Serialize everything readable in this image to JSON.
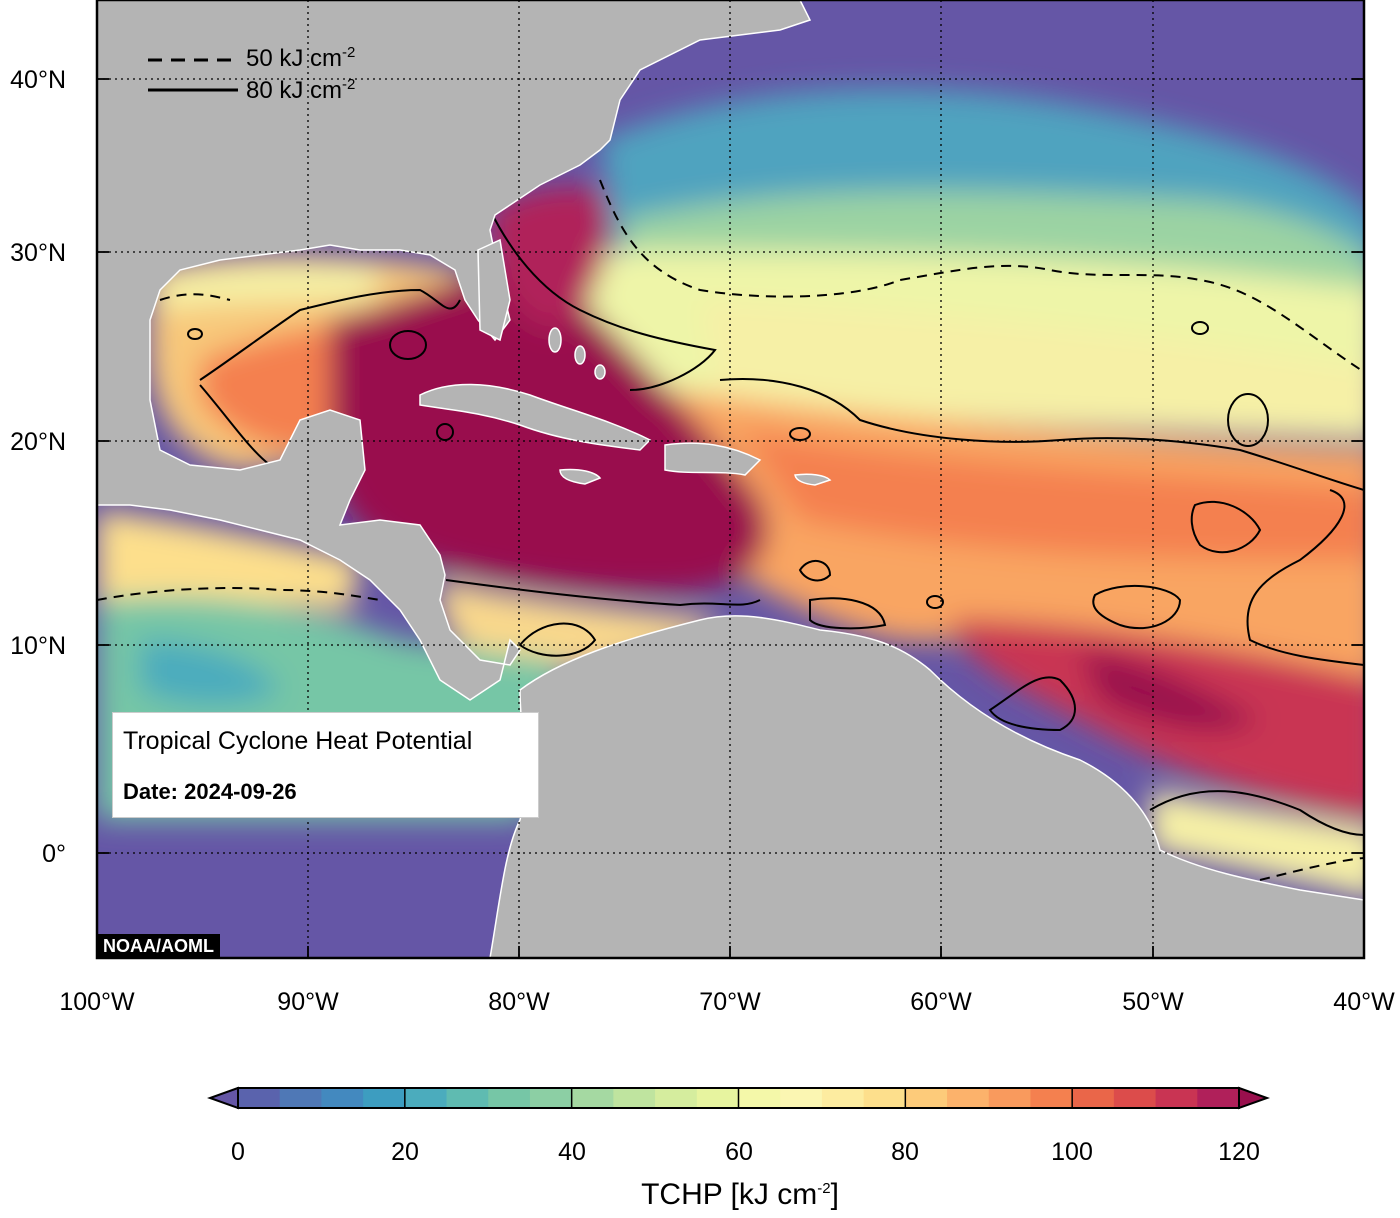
{
  "map": {
    "lat_labels": [
      "40°N",
      "30°N",
      "20°N",
      "10°N",
      "0°"
    ],
    "lon_labels": [
      "100°W",
      "90°W",
      "80°W",
      "70°W",
      "60°W",
      "50°W",
      "40°W"
    ],
    "extent": {
      "lon": [
        -100,
        -40
      ],
      "lat": [
        -6,
        44
      ]
    },
    "land_color": "#b4b4b4",
    "coast_color": "#ffffff"
  },
  "legend": {
    "dashed_value": "50 kJ cm",
    "solid_value": "80 kJ cm",
    "exponent": "-2"
  },
  "info_box": {
    "title": "Tropical Cyclone Heat Potential",
    "date": "Date: 2024-09-26"
  },
  "credit": "NOAA/AOML",
  "colorbar": {
    "ticks": [
      "0",
      "20",
      "40",
      "60",
      "80",
      "100",
      "120"
    ],
    "title": "TCHP [kJ cm",
    "title_exp": "-2",
    "title_close": "]",
    "range": [
      0,
      120
    ],
    "colors": [
      "#6556a6",
      "#5a63ad",
      "#4f78b6",
      "#4389bf",
      "#3d9dc0",
      "#4bacbd",
      "#5fbbb1",
      "#76c6a6",
      "#8ccfa4",
      "#a5d9a2",
      "#bfe49f",
      "#d5ed9e",
      "#e7f49f",
      "#f4f8a9",
      "#fbf6b2",
      "#fdeca0",
      "#fddf8c",
      "#fdcb7a",
      "#fcb26b",
      "#f99a5d",
      "#f4804f",
      "#ea6649",
      "#dc4c4b",
      "#c93453",
      "#b0205a",
      "#990f4d"
    ]
  }
}
